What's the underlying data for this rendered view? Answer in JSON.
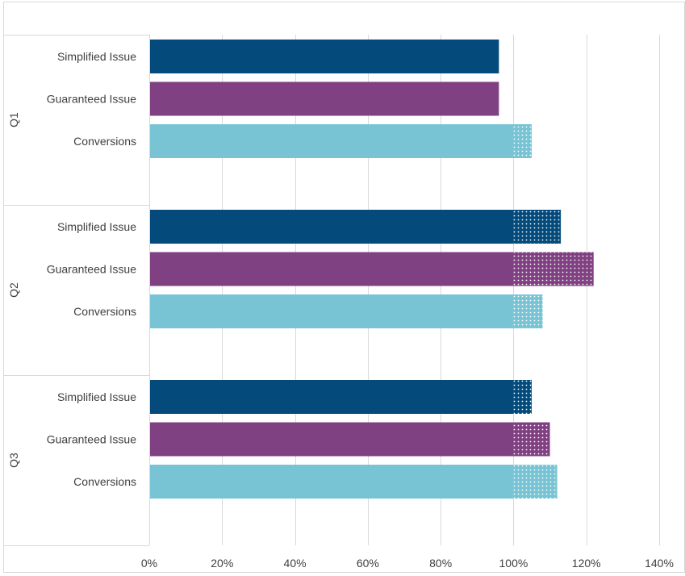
{
  "chart_data": {
    "type": "bar",
    "orientation": "horizontal",
    "groups": [
      {
        "label": "Q1",
        "bars": [
          {
            "category": "Simplified Issue",
            "value": 96
          },
          {
            "category": "Guaranteed Issue",
            "value": 96
          },
          {
            "category": "Conversions",
            "value": 105
          }
        ]
      },
      {
        "label": "Q2",
        "bars": [
          {
            "category": "Simplified Issue",
            "value": 113
          },
          {
            "category": "Guaranteed Issue",
            "value": 122
          },
          {
            "category": "Conversions",
            "value": 108
          }
        ]
      },
      {
        "label": "Q3",
        "bars": [
          {
            "category": "Simplified Issue",
            "value": 105
          },
          {
            "category": "Guaranteed Issue",
            "value": 110
          },
          {
            "category": "Conversions",
            "value": 112
          }
        ]
      }
    ],
    "x_ticks": [
      "0%",
      "20%",
      "40%",
      "60%",
      "80%",
      "100%",
      "120%",
      "140%"
    ],
    "xlim": [
      0,
      140
    ],
    "threshold": 100,
    "grid": true,
    "colors": {
      "Simplified Issue": "#044a7a",
      "Guaranteed Issue": "#804182",
      "Conversions": "#78c4d4"
    },
    "above_threshold_style": "dotted"
  }
}
